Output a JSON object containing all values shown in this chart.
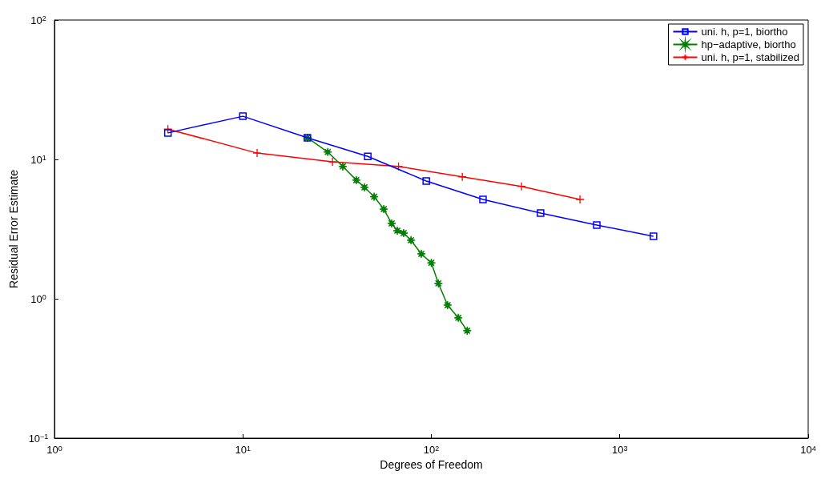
{
  "chart_data": {
    "type": "line",
    "xlabel": "Degrees of Freedom",
    "ylabel": "Residual Error Estimate",
    "log": "xy",
    "grid": false,
    "legend": "top right",
    "line_style": "solid",
    "xlim": [
      1,
      10000
    ],
    "xticks": [
      {
        "value": 1,
        "label": "10$^{0}$"
      },
      {
        "value": 10,
        "label": "10$^{1}$"
      },
      {
        "value": 100,
        "label": "10$^{2}$"
      },
      {
        "value": 1000,
        "label": "10$^{3}$"
      },
      {
        "value": 10000,
        "label": "10$^{4}$"
      }
    ],
    "ylim": [
      0.1,
      100
    ],
    "yticks": [
      {
        "value": 0.1,
        "label": "10$^{−1}$"
      },
      {
        "value": 1,
        "label": "10$^{0}$"
      },
      {
        "value": 10,
        "label": "10$^{1}$"
      },
      {
        "value": 100,
        "label": "10$^{2}$"
      }
    ],
    "series": [
      {
        "name": "uni. h, p=1, biortho",
        "color": "#0000ff",
        "marker": "square",
        "x": [
          4,
          10,
          22,
          46,
          94,
          188,
          380,
          755,
          1510
        ],
        "values": [
          15.5,
          20.4,
          14.3,
          10.5,
          7.0,
          5.16,
          4.12,
          3.38,
          2.81
        ]
      },
      {
        "name": "hp−adaptive, biortho",
        "color": "#008000",
        "marker": "star",
        "x": [
          22,
          28.2,
          33.9,
          40,
          44.2,
          49.7,
          55.9,
          61.6,
          66,
          71.3,
          78,
          88.5,
          100,
          109,
          122,
          139,
          155
        ],
        "values": [
          14.3,
          11.3,
          8.9,
          7.1,
          6.3,
          5.4,
          4.4,
          3.47,
          3.08,
          2.96,
          2.63,
          2.1,
          1.81,
          1.29,
          0.9,
          0.73,
          0.59
        ]
      },
      {
        "name": "uni. h, p=1, stabilized",
        "color": "#ff0000",
        "marker": "cross",
        "x": [
          4,
          11.9,
          29.9,
          67,
          146,
          301,
          615
        ],
        "values": [
          16.5,
          11.1,
          9.6,
          8.9,
          7.5,
          6.4,
          5.16
        ]
      }
    ]
  }
}
